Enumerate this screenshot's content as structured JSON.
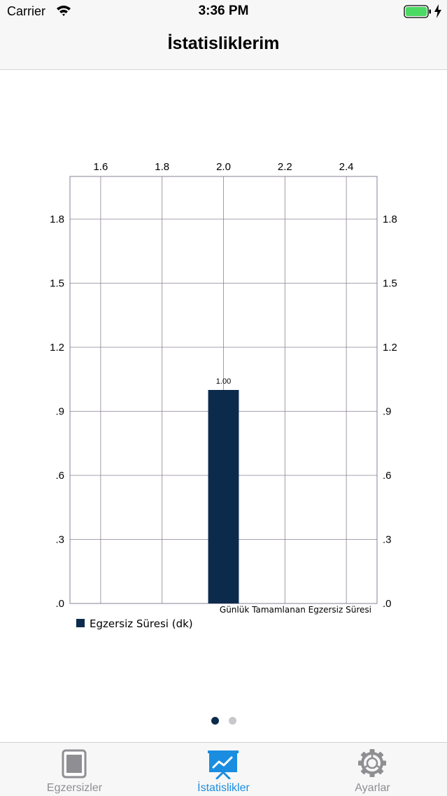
{
  "status_bar": {
    "carrier": "Carrier",
    "time": "3:36 PM",
    "battery_color": "#4cd964"
  },
  "nav": {
    "title": "İstatisliklerim"
  },
  "chart_data": {
    "type": "bar",
    "x": [
      2.0
    ],
    "values": [
      1.0
    ],
    "value_labels": [
      "1.00"
    ],
    "series": [
      {
        "name": "Egzersiz Süresi (dk)",
        "values": [
          1.0
        ],
        "color": "#0c2b4c"
      }
    ],
    "x_ticks": [
      "1.6",
      "1.8",
      "2.0",
      "2.2",
      "2.4"
    ],
    "x_tick_values": [
      1.6,
      1.8,
      2.0,
      2.2,
      2.4
    ],
    "y_ticks": [
      ".0",
      ".3",
      ".6",
      ".9",
      "1.2",
      "1.5",
      "1.8"
    ],
    "y_tick_values": [
      0,
      0.3,
      0.6,
      0.9,
      1.2,
      1.5,
      1.8
    ],
    "xlim": [
      1.5,
      2.5
    ],
    "ylim": [
      0,
      2.0
    ],
    "bar_width": 0.1,
    "description": "Günlük Tamamlanan Egzersiz Süresi",
    "legend_position": "bottom-left",
    "grid": true,
    "x_axis_position": "top",
    "y_axis": "left-and-right"
  },
  "pager": {
    "pages": 2,
    "current": 1
  },
  "tabs": [
    {
      "label": "Egzersizler",
      "icon": "notebook-icon",
      "active": false
    },
    {
      "label": "İstatislikler",
      "icon": "presentation-chart-icon",
      "active": true
    },
    {
      "label": "Ayarlar",
      "icon": "gear-icon",
      "active": false
    }
  ],
  "colors": {
    "accent": "#1a8de0",
    "bar": "#0c2b4c",
    "inactive": "#8e8e93",
    "grid": "#8a8095"
  }
}
